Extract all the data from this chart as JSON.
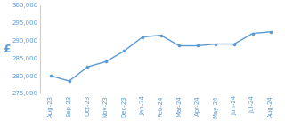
{
  "months": [
    "Aug-23",
    "Sep-23",
    "Oct-23",
    "Nov-23",
    "Dec-23",
    "Jan-24",
    "Feb-24",
    "Mar-24",
    "Apr-24",
    "May-24",
    "Jun-24",
    "Jul-24",
    "Aug-24"
  ],
  "values": [
    280000,
    278500,
    282500,
    284000,
    287000,
    291000,
    291500,
    288500,
    288500,
    289000,
    289000,
    292000,
    292500
  ],
  "line_color": "#5b9bd5",
  "marker": "o",
  "marker_size": 2.2,
  "linewidth": 1.0,
  "ylabel": "£",
  "ylim": [
    275000,
    300000
  ],
  "yticks": [
    275000,
    280000,
    285000,
    290000,
    295000,
    300000
  ],
  "tick_fontsize": 5.0,
  "ylabel_fontsize": 9,
  "tick_color": "#5b9bd5",
  "background_color": "#ffffff",
  "spine_color": "#b0c8e8"
}
